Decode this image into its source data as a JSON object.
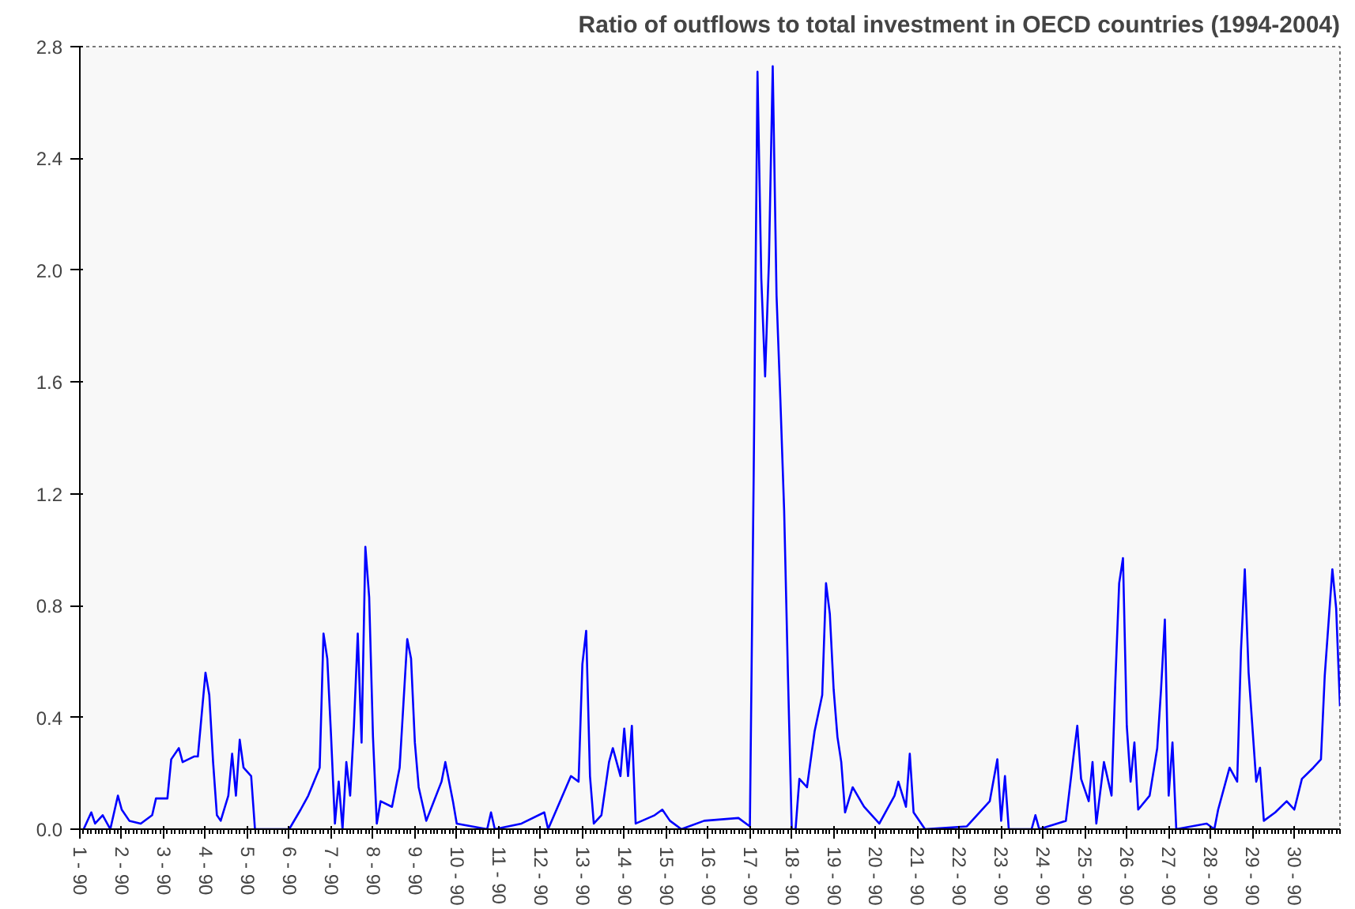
{
  "chart_data": {
    "type": "line",
    "title": "Ratio of outflows to total investment in OECD countries (1994-2004)",
    "categories": [
      "1 - 90",
      null,
      null,
      null,
      null,
      null,
      null,
      null,
      null,
      null,
      null,
      "2 - 90",
      null,
      null,
      null,
      null,
      null,
      null,
      null,
      null,
      null,
      null,
      "3 - 90",
      null,
      null,
      null,
      null,
      null,
      null,
      null,
      null,
      null,
      null,
      "4 - 90",
      null,
      null,
      null,
      null,
      null,
      null,
      null,
      null,
      null,
      null,
      "5 - 90",
      null,
      null,
      null,
      null,
      null,
      null,
      null,
      null,
      null,
      null,
      "6 - 90",
      null,
      null,
      null,
      null,
      null,
      null,
      null,
      null,
      null,
      null,
      "7 - 90",
      null,
      null,
      null,
      null,
      null,
      null,
      null,
      null,
      null,
      null,
      "8 - 90",
      null,
      null,
      null,
      null,
      null,
      null,
      null,
      null,
      null,
      null,
      "9 - 90",
      null,
      null,
      null,
      null,
      null,
      null,
      null,
      null,
      null,
      null,
      "10 - 90",
      null,
      null,
      null,
      null,
      null,
      null,
      null,
      null,
      null,
      null,
      "11 - 90",
      null,
      null,
      null,
      null,
      null,
      null,
      null,
      null,
      null,
      null,
      "12 - 90",
      null,
      null,
      null,
      null,
      null,
      null,
      null,
      null,
      null,
      null,
      "13 - 90",
      null,
      null,
      null,
      null,
      null,
      null,
      null,
      null,
      null,
      null,
      "14 - 90",
      null,
      null,
      null,
      null,
      null,
      null,
      null,
      null,
      null,
      null,
      "15 - 90",
      null,
      null,
      null,
      null,
      null,
      null,
      null,
      null,
      null,
      null,
      "16 - 90",
      null,
      null,
      null,
      null,
      null,
      null,
      null,
      null,
      null,
      null,
      "17 - 90",
      null,
      null,
      null,
      null,
      null,
      null,
      null,
      null,
      null,
      null,
      "18 - 90",
      null,
      null,
      null,
      null,
      null,
      null,
      null,
      null,
      null,
      null,
      "19 - 90",
      null,
      null,
      null,
      null,
      null,
      null,
      null,
      null,
      null,
      null,
      "20 - 90",
      null,
      null,
      null,
      null,
      null,
      null,
      null,
      null,
      null,
      null,
      "21 - 90",
      null,
      null,
      null,
      null,
      null,
      null,
      null,
      null,
      null,
      null,
      "22 - 90",
      null,
      null,
      null,
      null,
      null,
      null,
      null,
      null,
      null,
      null,
      "23 - 90",
      null,
      null,
      null,
      null,
      null,
      null,
      null,
      null,
      null,
      null,
      "24 - 90",
      null,
      null,
      null,
      null,
      null,
      null,
      null,
      null,
      null,
      null,
      "25 - 90",
      null,
      null,
      null,
      null,
      null,
      null,
      null,
      null,
      null,
      null,
      "26 - 90",
      null,
      null,
      null,
      null,
      null,
      null,
      null,
      null,
      null,
      null,
      "27 - 90",
      null,
      null,
      null,
      null,
      null,
      null,
      null,
      null,
      null,
      null,
      "28 - 90",
      null,
      null,
      null,
      null,
      null,
      null,
      null,
      null,
      null,
      null,
      "29 - 90",
      null,
      null,
      null,
      null,
      null,
      null,
      null,
      null,
      null,
      null,
      "30 - 90",
      null,
      null,
      null,
      null,
      null,
      null,
      null,
      null,
      null,
      null,
      null,
      null
    ],
    "series": [
      {
        "color": "#0000ff",
        "values": [
          null,
          0.0,
          null,
          0.06,
          0.02,
          null,
          0.05,
          null,
          0.0,
          null,
          0.12,
          0.07,
          null,
          0.03,
          null,
          null,
          0.02,
          null,
          null,
          0.05,
          0.11,
          null,
          null,
          0.11,
          0.25,
          null,
          0.29,
          0.24,
          null,
          null,
          0.26,
          0.26,
          0.41,
          0.56,
          0.48,
          0.24,
          0.05,
          0.03,
          null,
          0.12,
          0.27,
          0.12,
          0.32,
          0.22,
          null,
          0.19,
          0.0,
          null,
          null,
          null,
          null,
          null,
          null,
          null,
          null,
          0.0,
          null,
          null,
          0.07,
          null,
          0.12,
          null,
          null,
          0.22,
          0.7,
          0.61,
          0.33,
          0.02,
          0.17,
          0.0,
          0.24,
          0.12,
          0.37,
          0.7,
          0.31,
          1.01,
          0.83,
          0.33,
          0.02,
          0.1,
          null,
          null,
          0.08,
          null,
          0.22,
          null,
          0.68,
          0.61,
          0.31,
          0.15,
          null,
          0.03,
          null,
          null,
          null,
          0.17,
          0.24,
          null,
          0.1,
          0.02,
          null,
          null,
          null,
          null,
          null,
          null,
          null,
          0.0,
          0.06,
          0.0,
          null,
          null,
          null,
          null,
          null,
          null,
          0.02,
          null,
          null,
          null,
          null,
          null,
          0.06,
          0.0,
          null,
          null,
          null,
          null,
          null,
          0.19,
          null,
          0.17,
          0.59,
          0.71,
          0.19,
          0.02,
          null,
          0.05,
          null,
          0.24,
          0.29,
          null,
          0.19,
          0.36,
          0.19,
          0.37,
          0.02,
          null,
          null,
          null,
          null,
          0.05,
          null,
          0.07,
          null,
          0.03,
          null,
          null,
          0.0,
          null,
          null,
          null,
          null,
          null,
          0.03,
          null,
          null,
          null,
          null,
          null,
          null,
          null,
          null,
          0.04,
          null,
          null,
          0.01,
          1.27,
          2.71,
          1.97,
          1.62,
          2.03,
          2.73,
          1.91,
          1.54,
          1.14,
          0.55,
          0.0,
          0.0,
          0.18,
          null,
          0.15,
          null,
          0.35,
          null,
          0.48,
          0.88,
          0.77,
          0.5,
          0.33,
          0.24,
          0.06,
          null,
          0.15,
          null,
          null,
          0.08,
          null,
          null,
          null,
          0.02,
          null,
          null,
          null,
          0.12,
          0.17,
          null,
          0.08,
          0.27,
          0.06,
          null,
          null,
          0.0,
          null,
          null,
          null,
          null,
          null,
          null,
          null,
          null,
          null,
          null,
          0.01,
          null,
          null,
          null,
          null,
          null,
          0.1,
          null,
          0.25,
          0.03,
          0.19,
          0.0,
          null,
          null,
          null,
          null,
          null,
          0.0,
          0.05,
          0.0,
          null,
          null,
          null,
          null,
          null,
          null,
          0.03,
          null,
          0.26,
          0.37,
          0.18,
          null,
          0.1,
          0.24,
          0.02,
          null,
          0.24,
          null,
          0.12,
          0.53,
          0.88,
          0.97,
          0.37,
          0.17,
          0.31,
          0.07,
          null,
          null,
          0.12,
          null,
          0.29,
          0.5,
          0.75,
          0.12,
          0.31,
          0.0,
          null,
          null,
          null,
          null,
          null,
          null,
          null,
          0.02,
          null,
          0.0,
          0.07,
          null,
          null,
          0.22,
          null,
          0.17,
          0.64,
          0.93,
          0.56,
          null,
          0.17,
          0.22,
          0.03,
          null,
          null,
          0.06,
          null,
          null,
          0.1,
          null,
          0.07,
          null,
          0.18,
          null,
          null,
          0.22,
          null,
          0.25,
          0.55,
          null,
          0.93,
          0.79,
          0.44
        ]
      }
    ],
    "ylim": [
      0,
      2.8
    ],
    "yticks": [
      {
        "value": 0,
        "label": "0.0"
      },
      {
        "value": 0.4,
        "label": "0.4"
      },
      {
        "value": 0.8,
        "label": "0.8"
      },
      {
        "value": 1.2,
        "label": "1.2"
      },
      {
        "value": 1.6,
        "label": "1.6"
      },
      {
        "value": 2.0,
        "label": "2.0"
      },
      {
        "value": 2.4,
        "label": "2.4"
      },
      {
        "value": 2.8,
        "label": "2.8"
      }
    ],
    "marker": "none",
    "line_style": "solid"
  }
}
